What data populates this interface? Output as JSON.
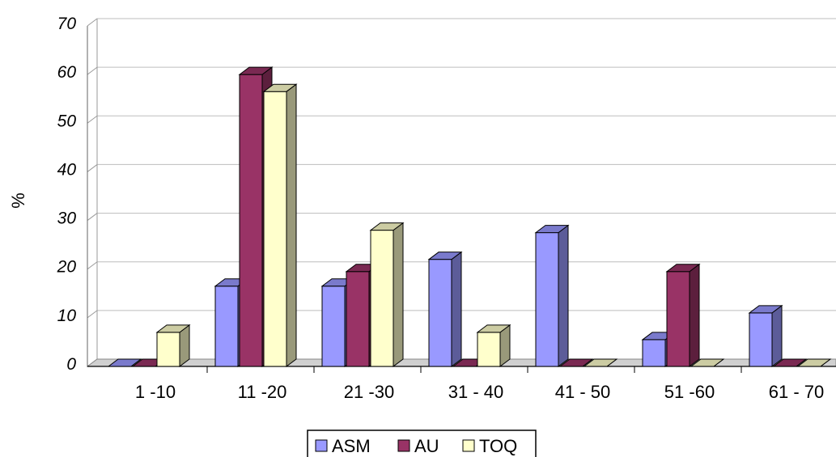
{
  "chart_data": {
    "type": "bar",
    "categories": [
      "1 -10",
      "11 -20",
      "21 -30",
      "31 - 40",
      "41 - 50",
      "51 -60",
      "61 - 70"
    ],
    "series": [
      {
        "name": "ASM",
        "values": [
          0,
          16.5,
          16.5,
          22,
          27.5,
          5.5,
          11
        ]
      },
      {
        "name": "AU",
        "values": [
          0,
          60,
          19.5,
          0,
          0,
          19.5,
          0
        ]
      },
      {
        "name": "TOQ",
        "values": [
          7,
          56.5,
          28,
          7,
          0,
          0,
          0
        ]
      }
    ],
    "title": "",
    "xlabel": "",
    "ylabel": "%",
    "ylim": [
      0,
      70
    ],
    "yticks": [
      0,
      10,
      20,
      30,
      40,
      50,
      60,
      70
    ],
    "grid": true,
    "legend_position": "bottom",
    "colors": {
      "ASM": "#9999ff",
      "AU": "#993366",
      "TOQ": "#ffffcc"
    }
  }
}
